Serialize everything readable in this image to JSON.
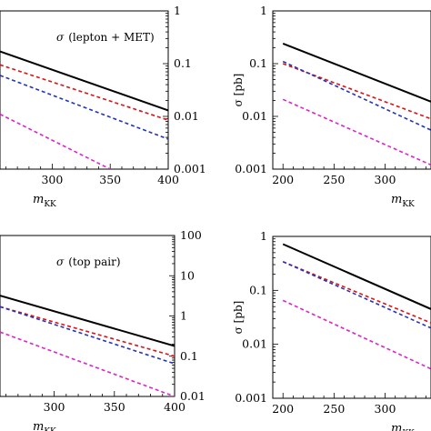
{
  "chart_data": [
    {
      "type": "line",
      "panel": "top-left",
      "annotation": {
        "symbol": "σ",
        "text": "(lepton + MET)"
      },
      "xlabel": {
        "main": "m",
        "sub": "KK"
      },
      "ylabel": "",
      "yscale": "log",
      "y_axis_side": "right",
      "xlim": [
        255,
        400
      ],
      "ylim": [
        0.001,
        1
      ],
      "x_ticks": [
        300,
        350,
        400
      ],
      "y_ticks": [
        {
          "v": 1,
          "label": "1"
        },
        {
          "v": 0.1,
          "label": "0.1"
        },
        {
          "v": 0.01,
          "label": "0.01"
        },
        {
          "v": 0.001,
          "label": "0.001"
        }
      ],
      "series": [
        {
          "color": "#000000",
          "dash": "solid",
          "x": [
            255,
            400
          ],
          "y": [
            0.17,
            0.013
          ]
        },
        {
          "color": "#dd1111",
          "dash": "dashed",
          "x": [
            255,
            400
          ],
          "y": [
            0.095,
            0.0085
          ]
        },
        {
          "color": "#2233bb",
          "dash": "dashed",
          "x": [
            255,
            400
          ],
          "y": [
            0.06,
            0.0037
          ]
        },
        {
          "color": "#dd22cc",
          "dash": "dashed",
          "x": [
            255,
            350
          ],
          "y": [
            0.011,
            0.001
          ]
        }
      ]
    },
    {
      "type": "line",
      "panel": "top-right",
      "annotation": null,
      "xlabel": {
        "main": "m",
        "sub": "KK"
      },
      "ylabel": "σ [pb]",
      "yscale": "log",
      "y_axis_side": "left",
      "xlim": [
        190,
        345
      ],
      "ylim": [
        0.001,
        1
      ],
      "x_ticks": [
        200,
        250,
        300
      ],
      "y_ticks": [
        {
          "v": 1,
          "label": "1"
        },
        {
          "v": 0.1,
          "label": "0.1"
        },
        {
          "v": 0.01,
          "label": "0.01"
        },
        {
          "v": 0.001,
          "label": "0.001"
        }
      ],
      "series": [
        {
          "color": "#000000",
          "dash": "solid",
          "x": [
            200,
            345
          ],
          "y": [
            0.24,
            0.019
          ]
        },
        {
          "color": "#dd1111",
          "dash": "dashed",
          "x": [
            200,
            345
          ],
          "y": [
            0.1,
            0.009
          ]
        },
        {
          "color": "#2233bb",
          "dash": "dashed",
          "x": [
            200,
            345
          ],
          "y": [
            0.11,
            0.0055
          ]
        },
        {
          "color": "#dd22cc",
          "dash": "dashed",
          "x": [
            200,
            345
          ],
          "y": [
            0.021,
            0.0012
          ]
        }
      ]
    },
    {
      "type": "line",
      "panel": "bottom-left",
      "annotation": {
        "symbol": "σ",
        "text": "(top pair)"
      },
      "xlabel": {
        "main": "m",
        "sub": "KK"
      },
      "ylabel": "",
      "yscale": "log",
      "y_axis_side": "right",
      "xlim": [
        255,
        400
      ],
      "ylim": [
        0.01,
        100
      ],
      "x_ticks": [
        300,
        350,
        400
      ],
      "y_ticks": [
        {
          "v": 100,
          "label": "100"
        },
        {
          "v": 10,
          "label": "10"
        },
        {
          "v": 1,
          "label": "1"
        },
        {
          "v": 0.1,
          "label": "0.1"
        },
        {
          "v": 0.01,
          "label": "0.01"
        }
      ],
      "series": [
        {
          "color": "#000000",
          "dash": "solid",
          "x": [
            255,
            400
          ],
          "y": [
            3.2,
            0.18
          ]
        },
        {
          "color": "#dd1111",
          "dash": "dashed",
          "x": [
            255,
            400
          ],
          "y": [
            1.7,
            0.1
          ]
        },
        {
          "color": "#2233bb",
          "dash": "dashed",
          "x": [
            255,
            400
          ],
          "y": [
            1.7,
            0.065
          ]
        },
        {
          "color": "#dd22cc",
          "dash": "dashed",
          "x": [
            255,
            400
          ],
          "y": [
            0.4,
            0.01
          ]
        }
      ]
    },
    {
      "type": "line",
      "panel": "bottom-right",
      "annotation": null,
      "xlabel": {
        "main": "m",
        "sub": "KK"
      },
      "ylabel": "σ [pb]",
      "yscale": "log",
      "y_axis_side": "left",
      "xlim": [
        190,
        345
      ],
      "ylim": [
        0.001,
        1
      ],
      "x_ticks": [
        200,
        250,
        300
      ],
      "y_ticks": [
        {
          "v": 1,
          "label": "1"
        },
        {
          "v": 0.1,
          "label": "0.1"
        },
        {
          "v": 0.01,
          "label": "0.01"
        },
        {
          "v": 0.001,
          "label": "0.001"
        }
      ],
      "series": [
        {
          "color": "#000000",
          "dash": "solid",
          "x": [
            200,
            345
          ],
          "y": [
            0.72,
            0.045
          ]
        },
        {
          "color": "#dd1111",
          "dash": "dashed",
          "x": [
            200,
            345
          ],
          "y": [
            0.34,
            0.025
          ]
        },
        {
          "color": "#2233bb",
          "dash": "dashed",
          "x": [
            200,
            345
          ],
          "y": [
            0.34,
            0.02
          ]
        },
        {
          "color": "#dd22cc",
          "dash": "dashed",
          "x": [
            200,
            345
          ],
          "y": [
            0.065,
            0.0035
          ]
        }
      ]
    }
  ]
}
